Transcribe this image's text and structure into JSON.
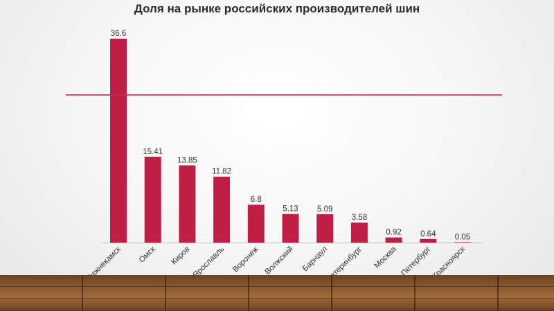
{
  "chart_data": {
    "type": "bar",
    "title": "Доля на рынке российских производителей шин",
    "categories": [
      "Нижнекамск",
      "Омск",
      "Киров",
      "Ярославль",
      "Воронеж",
      "Волжский",
      "Барнаул",
      "Екатеринбург",
      "Москва",
      "Санкт-Петербург",
      "Красноярск"
    ],
    "values": [
      36.6,
      15.41,
      13.85,
      11.82,
      6.8,
      5.13,
      5.09,
      3.58,
      0.92,
      0.64,
      0.05
    ],
    "value_labels": [
      "36.6",
      "15.41",
      "13.85",
      "11.82",
      "6.8",
      "5.13",
      "5.09",
      "3.58",
      "0.92",
      "0.64",
      "0.05"
    ],
    "reference_line_value": 26.5,
    "ylim": [
      0,
      36.6
    ],
    "bar_color": "#c01f45",
    "line_color": "#b8324a",
    "grid": false,
    "legend": "none"
  }
}
